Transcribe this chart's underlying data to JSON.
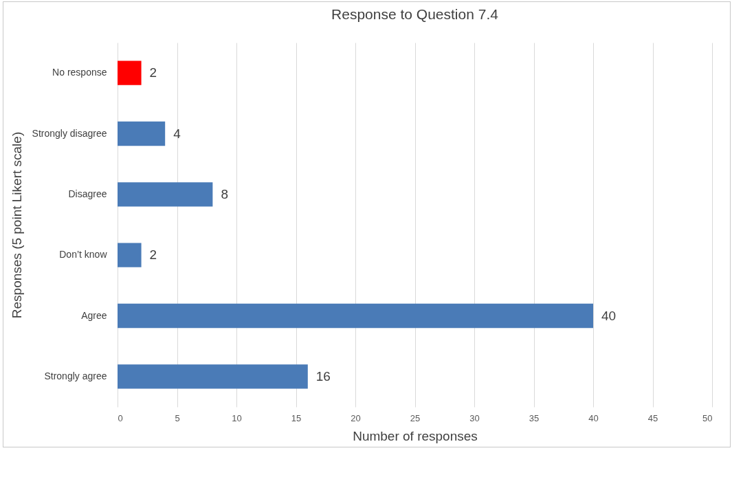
{
  "chart_data": {
    "type": "bar",
    "orientation": "horizontal",
    "title": "Response to Question 7.4",
    "xlabel": "Number of responses",
    "ylabel": "Responses (5 point Likert scale)",
    "categories": [
      "No response",
      "Strongly disagree",
      "Disagree",
      "Don’t know",
      "Agree",
      "Strongly agree"
    ],
    "values": [
      2,
      4,
      8,
      2,
      40,
      16
    ],
    "colors": [
      "#ff0000",
      "#4a7bb7",
      "#4a7bb7",
      "#4a7bb7",
      "#4a7bb7",
      "#4a7bb7"
    ],
    "xlim": [
      0,
      50
    ],
    "xticks": [
      0,
      5,
      10,
      15,
      20,
      25,
      30,
      35,
      40,
      45,
      50
    ],
    "grid": "x",
    "data_labels": true
  }
}
